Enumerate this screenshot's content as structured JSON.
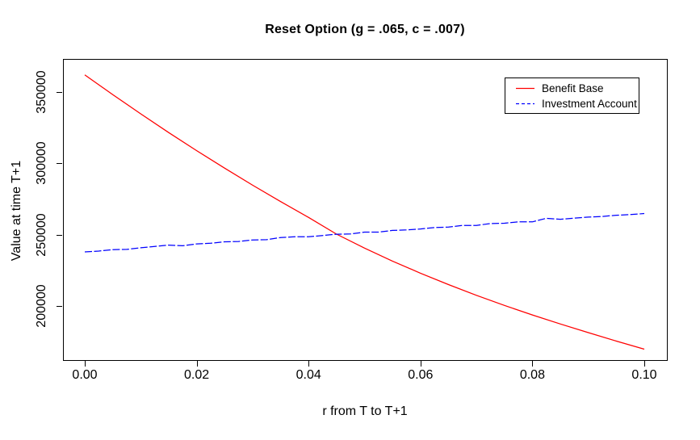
{
  "page": {
    "background_color": "#FFFFFF",
    "text_color": "#000000"
  },
  "chart_data": {
    "type": "line",
    "title": "Reset Option (g = .065, c = .007)",
    "xlabel": "r from T to T+1",
    "ylabel": "Value at time T+1",
    "x_ticks": [
      0.0,
      0.02,
      0.04,
      0.06,
      0.08,
      0.1
    ],
    "x_tick_labels": [
      "0.00",
      "0.02",
      "0.04",
      "0.06",
      "0.08",
      "0.10"
    ],
    "y_ticks": [
      200000,
      250000,
      300000,
      350000
    ],
    "y_tick_labels": [
      "200000",
      "250000",
      "300000",
      "350000"
    ],
    "xlim": [
      -0.004,
      0.104
    ],
    "ylim": [
      162000,
      373200
    ],
    "grid": false,
    "frame": "box",
    "legend": {
      "position": "top-right",
      "entries": [
        {
          "label": "Benefit Base",
          "color": "#FF0000",
          "line_style": "solid"
        },
        {
          "label": "Investment Account",
          "color": "#0000FF",
          "line_style": "dashed"
        }
      ]
    },
    "series": [
      {
        "name": "Benefit Base",
        "color": "#FF0000",
        "line_style": "solid",
        "x": [
          0.0,
          0.005,
          0.01,
          0.015,
          0.02,
          0.025,
          0.03,
          0.035,
          0.04,
          0.045,
          0.05,
          0.055,
          0.06,
          0.065,
          0.07,
          0.075,
          0.08,
          0.085,
          0.09,
          0.095,
          0.1
        ],
        "values": [
          362000,
          348200,
          334700,
          321600,
          308900,
          296600,
          284700,
          273200,
          262100,
          250400,
          240600,
          231500,
          223000,
          215000,
          207500,
          200400,
          193700,
          187400,
          181300,
          175400,
          169700
        ]
      },
      {
        "name": "Investment Account",
        "color": "#0000FF",
        "line_style": "dashed",
        "x": [
          0.0,
          0.0025,
          0.005,
          0.0075,
          0.01,
          0.0125,
          0.015,
          0.0175,
          0.02,
          0.0225,
          0.025,
          0.0275,
          0.03,
          0.0325,
          0.035,
          0.0375,
          0.04,
          0.0425,
          0.045,
          0.0475,
          0.05,
          0.0525,
          0.055,
          0.0575,
          0.06,
          0.0625,
          0.065,
          0.0675,
          0.07,
          0.0725,
          0.075,
          0.0775,
          0.08,
          0.0825,
          0.085,
          0.0875,
          0.09,
          0.0925,
          0.095,
          0.0975,
          0.1
        ],
        "values": [
          237900,
          238500,
          239500,
          239700,
          240800,
          241800,
          242700,
          242200,
          243500,
          244000,
          245000,
          245200,
          246300,
          246500,
          248000,
          248500,
          248500,
          249400,
          250300,
          250500,
          251800,
          251800,
          253000,
          253300,
          254000,
          255000,
          255300,
          256500,
          256500,
          257800,
          258000,
          259000,
          259000,
          261500,
          260800,
          261600,
          262300,
          262800,
          263600,
          264100,
          264800
        ]
      }
    ],
    "annotations": {
      "crossing_point": {
        "x": 0.044,
        "value": 250000
      }
    }
  }
}
